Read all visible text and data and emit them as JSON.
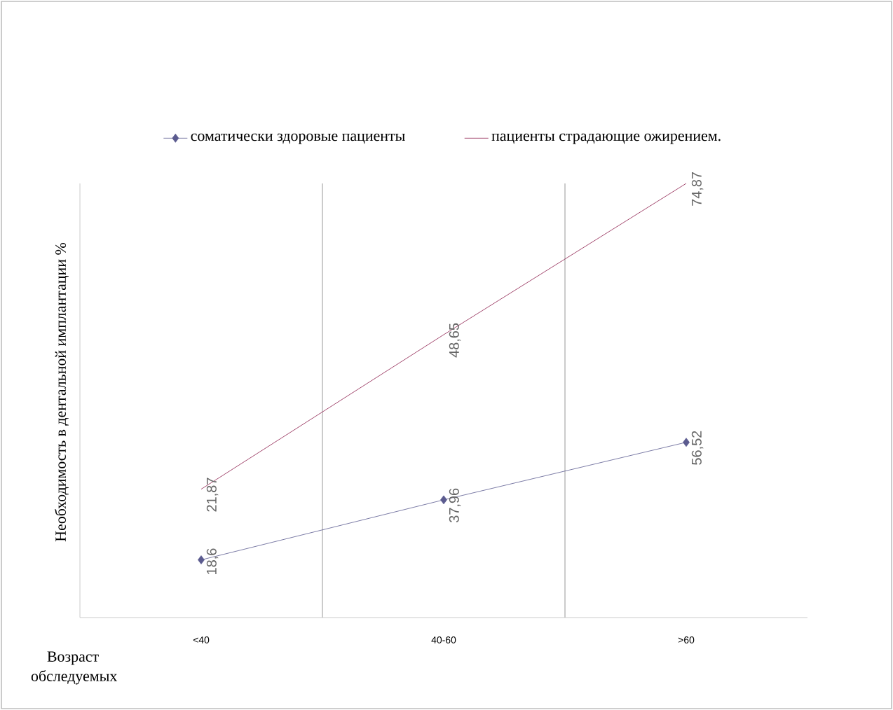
{
  "chart_data": {
    "type": "line",
    "ylabel": "Необходимость в дентальной  имплантации  %",
    "annotations": [
      "Возраст обследуемых"
    ],
    "categories": [
      "<40",
      "40-60",
      ">60"
    ],
    "series": [
      {
        "name": "соматически здоровые пациенты",
        "color": "#5b5b8f",
        "marker": "diamond",
        "values": [
          18.6,
          37.96,
          56.52
        ],
        "value_labels": [
          "18,6",
          "37,96",
          "56,52"
        ]
      },
      {
        "name": "пациенты страдающие ожирением.",
        "color": "#8b1a4a",
        "marker": "none",
        "axis": "y2",
        "values": [
          21.87,
          48.65,
          74.87
        ],
        "value_labels": [
          "21,87",
          "48,65",
          "74,87"
        ]
      }
    ],
    "ylim": [
      0,
      140
    ],
    "grid": "x",
    "legend": "top"
  }
}
